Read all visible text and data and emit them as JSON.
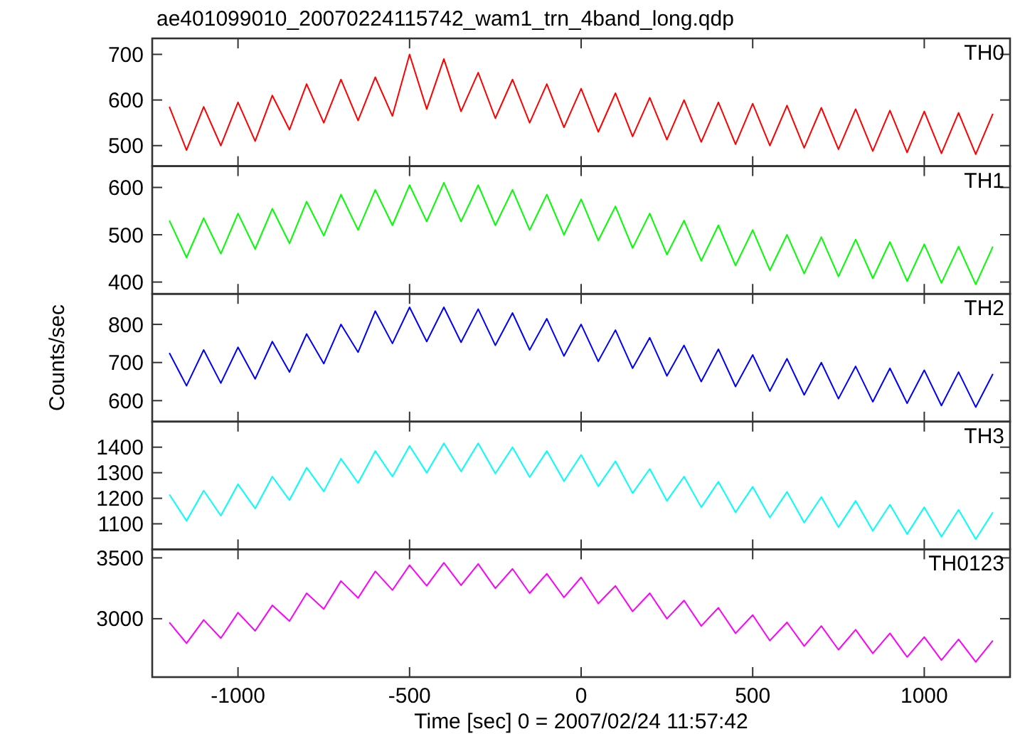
{
  "chart_data": [
    {
      "type": "line",
      "title": "ae401099010_20070224115742_wam1_trn_4band_long.qdp",
      "annotations": [
        "TH0"
      ],
      "tick_labels": "y",
      "xlim": [
        -1250,
        1250
      ],
      "xticks": [
        -1000,
        -500,
        0,
        500,
        1000
      ],
      "ylim": [
        455,
        735
      ],
      "yticks": [
        500,
        600,
        700
      ],
      "grid": false,
      "x": [
        -1200,
        -1150,
        -1100,
        -1050,
        -1000,
        -950,
        -900,
        -850,
        -800,
        -750,
        -700,
        -650,
        -600,
        -550,
        -500,
        -450,
        -400,
        -350,
        -300,
        -250,
        -200,
        -150,
        -100,
        -50,
        0,
        50,
        100,
        150,
        200,
        250,
        300,
        350,
        400,
        450,
        500,
        550,
        600,
        650,
        700,
        750,
        800,
        850,
        900,
        950,
        1000,
        1050,
        1100,
        1150,
        1200
      ],
      "series": [
        {
          "color": "#ff0000",
          "values": [
            585,
            490,
            585,
            500,
            595,
            510,
            610,
            535,
            635,
            550,
            645,
            555,
            650,
            565,
            700,
            580,
            690,
            575,
            660,
            560,
            645,
            550,
            635,
            540,
            625,
            530,
            615,
            520,
            605,
            513,
            600,
            508,
            595,
            503,
            592,
            500,
            588,
            495,
            583,
            492,
            580,
            488,
            577,
            485,
            575,
            483,
            572,
            481,
            570
          ]
        }
      ]
    },
    {
      "type": "line",
      "annotations": [
        "TH1"
      ],
      "tick_labels": "y",
      "xlim": [
        -1250,
        1250
      ],
      "xticks": [
        -1000,
        -500,
        0,
        500,
        1000
      ],
      "ylim": [
        375,
        645
      ],
      "yticks": [
        400,
        500,
        600
      ],
      "grid": false,
      "x": [
        -1200,
        -1150,
        -1100,
        -1050,
        -1000,
        -950,
        -900,
        -850,
        -800,
        -750,
        -700,
        -650,
        -600,
        -550,
        -500,
        -450,
        -400,
        -350,
        -300,
        -250,
        -200,
        -150,
        -100,
        -50,
        0,
        50,
        100,
        150,
        200,
        250,
        300,
        350,
        400,
        450,
        500,
        550,
        600,
        650,
        700,
        750,
        800,
        850,
        900,
        950,
        1000,
        1050,
        1100,
        1150,
        1200
      ],
      "series": [
        {
          "color": "#00ff00",
          "values": [
            530,
            452,
            535,
            460,
            545,
            470,
            555,
            482,
            570,
            498,
            585,
            510,
            595,
            520,
            605,
            528,
            610,
            528,
            605,
            520,
            595,
            510,
            585,
            500,
            575,
            488,
            560,
            472,
            545,
            458,
            530,
            445,
            520,
            435,
            510,
            425,
            500,
            418,
            495,
            412,
            490,
            408,
            485,
            402,
            480,
            398,
            475,
            395,
            475
          ]
        }
      ]
    },
    {
      "type": "line",
      "annotations": [
        "TH2"
      ],
      "ylabel": "Counts/sec",
      "tick_labels": "y",
      "xlim": [
        -1250,
        1250
      ],
      "xticks": [
        -1000,
        -500,
        0,
        500,
        1000
      ],
      "ylim": [
        545,
        880
      ],
      "yticks": [
        600,
        700,
        800
      ],
      "grid": false,
      "x": [
        -1200,
        -1150,
        -1100,
        -1050,
        -1000,
        -950,
        -900,
        -850,
        -800,
        -750,
        -700,
        -650,
        -600,
        -550,
        -500,
        -450,
        -400,
        -350,
        -300,
        -250,
        -200,
        -150,
        -100,
        -50,
        0,
        50,
        100,
        150,
        200,
        250,
        300,
        350,
        400,
        450,
        500,
        550,
        600,
        650,
        700,
        750,
        800,
        850,
        900,
        950,
        1000,
        1050,
        1100,
        1150,
        1200
      ],
      "series": [
        {
          "color": "#0000ff",
          "values": [
            725,
            639,
            733,
            646,
            740,
            657,
            755,
            675,
            775,
            697,
            800,
            727,
            835,
            750,
            845,
            755,
            845,
            753,
            840,
            745,
            830,
            733,
            815,
            717,
            800,
            703,
            785,
            685,
            765,
            665,
            745,
            650,
            735,
            637,
            720,
            625,
            710,
            615,
            700,
            605,
            690,
            597,
            685,
            593,
            680,
            587,
            675,
            583,
            670
          ]
        }
      ]
    },
    {
      "type": "line",
      "annotations": [
        "TH3"
      ],
      "tick_labels": "y",
      "xlim": [
        -1250,
        1250
      ],
      "xticks": [
        -1000,
        -500,
        0,
        500,
        1000
      ],
      "ylim": [
        1000,
        1500
      ],
      "yticks": [
        1100,
        1200,
        1300,
        1400
      ],
      "grid": false,
      "x": [
        -1200,
        -1150,
        -1100,
        -1050,
        -1000,
        -950,
        -900,
        -850,
        -800,
        -750,
        -700,
        -650,
        -600,
        -550,
        -500,
        -450,
        -400,
        -350,
        -300,
        -250,
        -200,
        -150,
        -100,
        -50,
        0,
        50,
        100,
        150,
        200,
        250,
        300,
        350,
        400,
        450,
        500,
        550,
        600,
        650,
        700,
        750,
        800,
        850,
        900,
        950,
        1000,
        1050,
        1100,
        1150,
        1200
      ],
      "series": [
        {
          "color": "#00ffff",
          "values": [
            1215,
            1112,
            1230,
            1132,
            1255,
            1160,
            1285,
            1193,
            1320,
            1227,
            1355,
            1260,
            1385,
            1285,
            1405,
            1300,
            1415,
            1305,
            1415,
            1297,
            1400,
            1283,
            1385,
            1267,
            1370,
            1247,
            1345,
            1220,
            1315,
            1190,
            1285,
            1165,
            1265,
            1145,
            1245,
            1125,
            1225,
            1105,
            1205,
            1087,
            1190,
            1073,
            1175,
            1060,
            1165,
            1050,
            1155,
            1040,
            1145
          ]
        }
      ]
    },
    {
      "type": "line",
      "annotations": [
        "TH0123"
      ],
      "xlabel": "Time [sec] 0 = 2007/02/24 11:57:42",
      "xlim": [
        -1250,
        1250
      ],
      "xticks": [
        -1000,
        -500,
        0,
        500,
        1000
      ],
      "ylim": [
        2520,
        3570
      ],
      "yticks": [
        3000,
        3500
      ],
      "grid": false,
      "x": [
        -1200,
        -1150,
        -1100,
        -1050,
        -1000,
        -950,
        -900,
        -850,
        -800,
        -750,
        -700,
        -650,
        -600,
        -550,
        -500,
        -450,
        -400,
        -350,
        -300,
        -250,
        -200,
        -150,
        -100,
        -50,
        0,
        50,
        100,
        150,
        200,
        250,
        300,
        350,
        400,
        450,
        500,
        550,
        600,
        650,
        700,
        750,
        800,
        850,
        900,
        950,
        1000,
        1050,
        1100,
        1150,
        1200
      ],
      "series": [
        {
          "color": "#ff00ff",
          "values": [
            2970,
            2798,
            2990,
            2840,
            3050,
            2900,
            3110,
            2980,
            3210,
            3080,
            3310,
            3170,
            3390,
            3235,
            3440,
            3270,
            3460,
            3275,
            3450,
            3250,
            3410,
            3210,
            3370,
            3175,
            3340,
            3125,
            3270,
            3060,
            3210,
            3000,
            3150,
            2940,
            3090,
            2880,
            3030,
            2820,
            2970,
            2775,
            2940,
            2745,
            2910,
            2715,
            2880,
            2685,
            2850,
            2660,
            2830,
            2645,
            2820
          ]
        }
      ]
    }
  ]
}
